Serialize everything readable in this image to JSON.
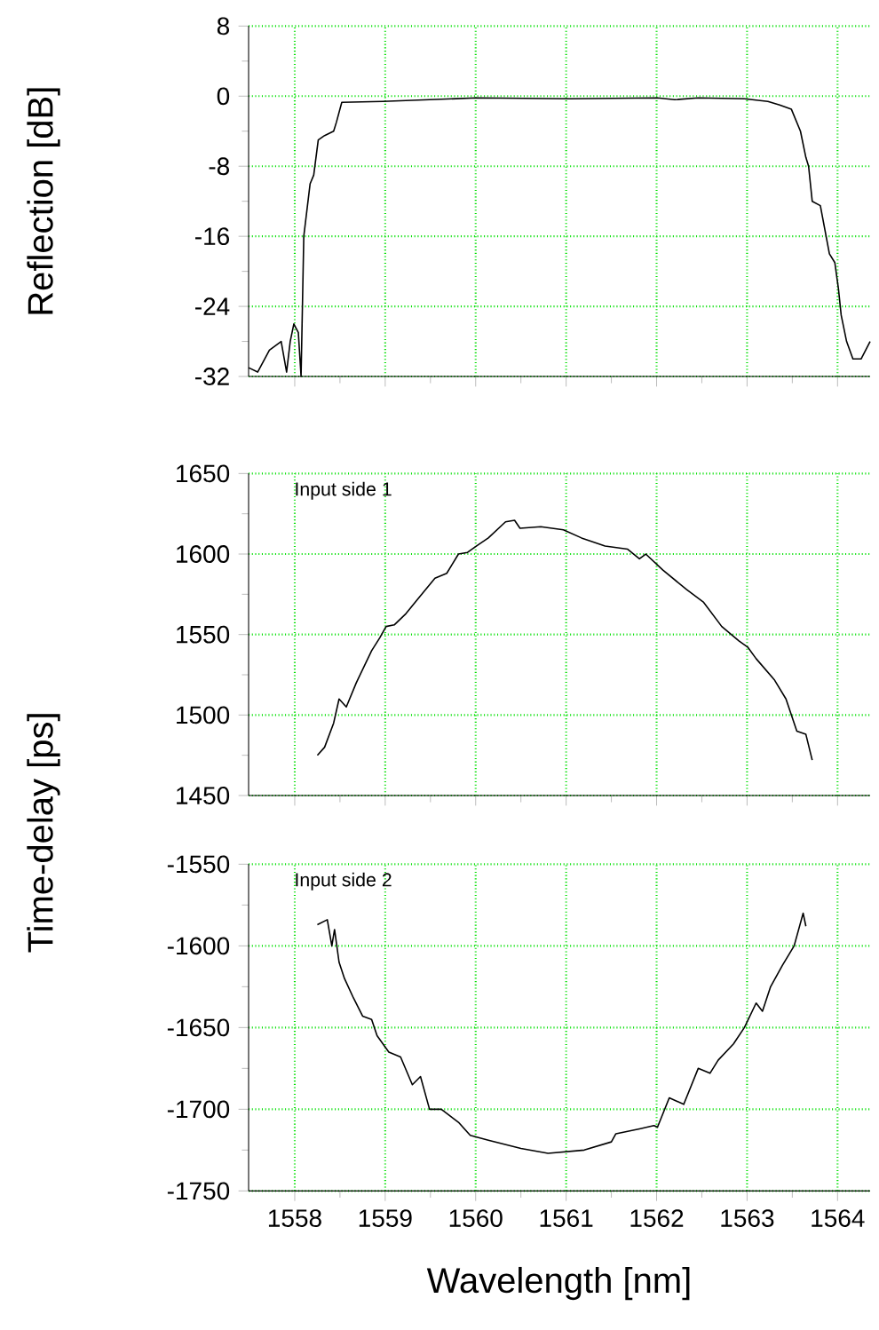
{
  "chart_data": [
    {
      "type": "line",
      "ylabel": "Reflection [dB]",
      "color": "#000000",
      "grid": true,
      "tick_labels": "y",
      "xlim": [
        1557.49,
        1564.36
      ],
      "xticks": [
        1558,
        1559,
        1560,
        1561,
        1562,
        1563,
        1564
      ],
      "ylim": [
        -32,
        8
      ],
      "yticks": [
        8,
        0,
        -8,
        -16,
        -24,
        -32
      ],
      "x": [
        1557.49,
        1557.59,
        1557.72,
        1557.85,
        1557.91,
        1557.95,
        1557.99,
        1558.04,
        1558.07,
        1558.1,
        1558.17,
        1558.21,
        1558.26,
        1558.33,
        1558.43,
        1558.46,
        1558.52,
        1558.97,
        1560.01,
        1561.04,
        1562.01,
        1562.2,
        1562.46,
        1562.97,
        1563.23,
        1563.36,
        1563.49,
        1563.59,
        1563.65,
        1563.68,
        1563.72,
        1563.81,
        1563.91,
        1563.97,
        1564.01,
        1564.04,
        1564.1,
        1564.17,
        1564.26,
        1564.36
      ],
      "values": [
        -31,
        -31.5,
        -29,
        -28,
        -31.5,
        -28,
        -26,
        -27,
        -32,
        -16,
        -10,
        -9,
        -5,
        -4.5,
        -4,
        -3,
        -0.7,
        -0.6,
        -0.2,
        -0.3,
        -0.2,
        -0.4,
        -0.2,
        -0.3,
        -0.6,
        -1,
        -1.5,
        -4,
        -7,
        -8,
        -12,
        -12.5,
        -18,
        -19,
        -22,
        -25,
        -28,
        -30,
        -30,
        -28
      ]
    },
    {
      "type": "line",
      "ylabel": "Time-delay [ps]",
      "annotations": [
        "Input side 1"
      ],
      "color": "#000000",
      "grid": true,
      "tick_labels": "y",
      "xlim": [
        1557.49,
        1564.36
      ],
      "xticks": [
        1558,
        1559,
        1560,
        1561,
        1562,
        1563,
        1564
      ],
      "ylim": [
        1450,
        1650
      ],
      "yticks": [
        1450,
        1500,
        1550,
        1600,
        1650
      ],
      "x": [
        1558.25,
        1558.33,
        1558.43,
        1558.49,
        1558.57,
        1558.68,
        1558.85,
        1558.94,
        1559.01,
        1559.1,
        1559.23,
        1559.36,
        1559.55,
        1559.68,
        1559.81,
        1559.91,
        1560.01,
        1560.14,
        1560.33,
        1560.43,
        1560.49,
        1560.72,
        1560.97,
        1561.17,
        1561.43,
        1561.68,
        1561.81,
        1561.88,
        1562.07,
        1562.33,
        1562.52,
        1562.72,
        1562.91,
        1563.01,
        1563.1,
        1563.3,
        1563.43,
        1563.55,
        1563.65,
        1563.72
      ],
      "values": [
        1475,
        1480,
        1495,
        1510,
        1505,
        1520,
        1540,
        1548,
        1555,
        1556,
        1563,
        1572,
        1585,
        1588,
        1600,
        1601,
        1605,
        1610,
        1620,
        1621,
        1616,
        1617,
        1615,
        1610,
        1605,
        1603,
        1597,
        1600,
        1590,
        1578,
        1570,
        1555,
        1546,
        1542,
        1535,
        1522,
        1510,
        1490,
        1488,
        1472
      ]
    },
    {
      "type": "line",
      "xlabel": "Wavelength [nm]",
      "annotations": [
        "Input side 2"
      ],
      "color": "#000000",
      "grid": true,
      "xlim": [
        1557.49,
        1564.36
      ],
      "xticks": [
        1558,
        1559,
        1560,
        1561,
        1562,
        1563,
        1564
      ],
      "ylim": [
        -1750,
        -1550
      ],
      "yticks": [
        -1750,
        -1700,
        -1650,
        -1600,
        -1550
      ],
      "x": [
        1558.25,
        1558.36,
        1558.41,
        1558.44,
        1558.49,
        1558.55,
        1558.65,
        1558.75,
        1558.85,
        1558.91,
        1559.04,
        1559.17,
        1559.3,
        1559.39,
        1559.49,
        1559.62,
        1559.81,
        1559.94,
        1560.14,
        1560.5,
        1560.8,
        1561.2,
        1561.5,
        1561.55,
        1561.81,
        1561.97,
        1562.01,
        1562.14,
        1562.3,
        1562.46,
        1562.59,
        1562.68,
        1562.85,
        1562.97,
        1563.1,
        1563.17,
        1563.26,
        1563.39,
        1563.52,
        1563.62,
        1563.65
      ],
      "values": [
        -1587,
        -1584,
        -1600,
        -1590,
        -1610,
        -1620,
        -1632,
        -1643,
        -1645,
        -1655,
        -1665,
        -1668,
        -1685,
        -1680,
        -1700,
        -1700,
        -1708,
        -1716,
        -1719,
        -1724,
        -1727,
        -1725,
        -1720,
        -1715,
        -1712,
        -1710,
        -1711,
        -1693,
        -1697,
        -1675,
        -1678,
        -1670,
        -1660,
        -1650,
        -1635,
        -1640,
        -1625,
        -1612,
        -1600,
        -1580,
        -1588
      ]
    }
  ]
}
